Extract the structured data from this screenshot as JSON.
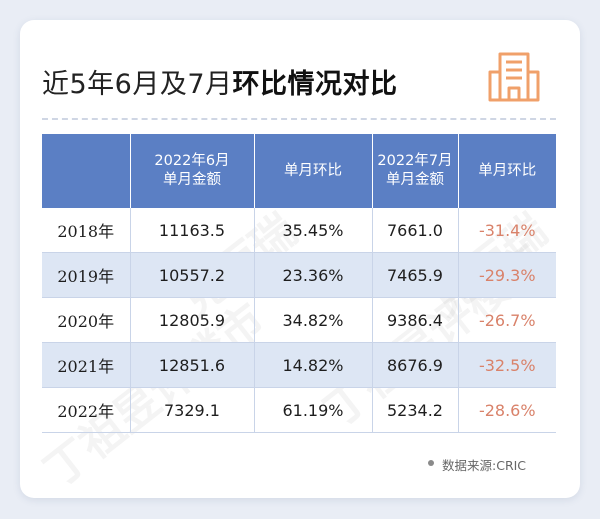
{
  "title": {
    "prefix": "近5年6月及7月",
    "bold": "环比情况对比"
  },
  "icon": "building-icon",
  "accent_color": "#f0a06a",
  "header_color": "#5b7fc4",
  "negative_color": "#d9826a",
  "table": {
    "headers": [
      "",
      "2022年6月\n单月金额",
      "单月环比",
      "2022年7月\n单月金额",
      "单月环比"
    ],
    "rows": [
      [
        "2018年",
        "11163.5",
        "35.45%",
        "7661.0",
        "-31.4%"
      ],
      [
        "2019年",
        "10557.2",
        "23.36%",
        "7465.9",
        "-29.3%"
      ],
      [
        "2020年",
        "12805.9",
        "34.82%",
        "9386.4",
        "-26.7%"
      ],
      [
        "2021年",
        "12851.6",
        "14.82%",
        "8676.9",
        "-32.5%"
      ],
      [
        "2022年",
        "7329.1",
        "61.19%",
        "5234.2",
        "-28.6%"
      ]
    ]
  },
  "source": "数据来源:CRIC",
  "watermarks": [
    "克而瑞",
    "丁祖昱评楼市",
    "丁祖昱评楼市",
    "克而瑞"
  ]
}
